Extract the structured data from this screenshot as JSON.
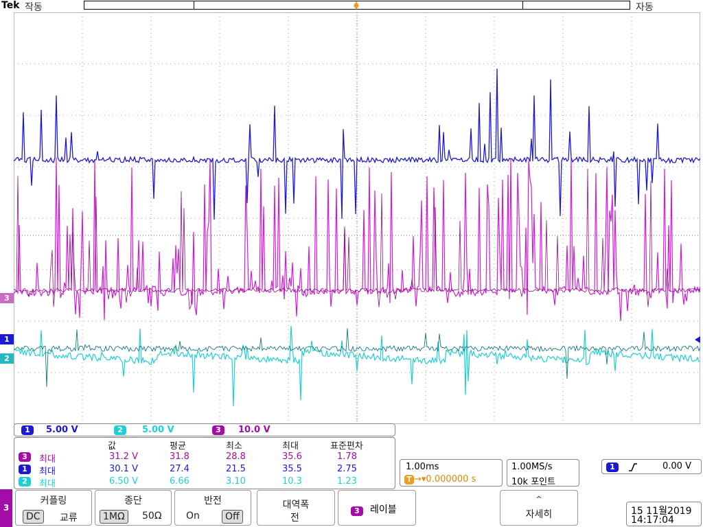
{
  "header": {
    "brand": "Tek",
    "acquisition_state": "작동",
    "trigger_mode": "자동",
    "trigger_icon": "T"
  },
  "channels": {
    "ch1": {
      "id": "1",
      "scale": "5.00 V",
      "color": "#1b18d6"
    },
    "ch2": {
      "id": "2",
      "scale": "5.00 V",
      "color": "#1ecfd8"
    },
    "ch3": {
      "id": "3",
      "scale": "10.0 V",
      "color": "#a20ca8"
    }
  },
  "measurements": {
    "headers": [
      "값",
      "평균",
      "최소",
      "최대",
      "표준편차"
    ],
    "rows": [
      {
        "ch": "3",
        "label": "최대",
        "value": "31.2 V",
        "mean": "31.8",
        "min": "28.8",
        "max": "35.6",
        "std": "1.78"
      },
      {
        "ch": "1",
        "label": "최대",
        "value": "30.1 V",
        "mean": "27.4",
        "min": "21.5",
        "max": "35.5",
        "std": "2.75"
      },
      {
        "ch": "2",
        "label": "최대",
        "value": "6.50 V",
        "mean": "6.66",
        "min": "3.10",
        "max": "10.3",
        "std": "1.23"
      }
    ]
  },
  "timebase": {
    "horizontal_scale": "1.00ms",
    "trigger_position": "0.000000 s",
    "sample_rate": "1.00MS/s",
    "record_length": "10k 포인트"
  },
  "trigger": {
    "source": "1",
    "slope_icon": "rising-edge-icon",
    "level": "0.00 V"
  },
  "menu": {
    "channel_tab": "3",
    "coupling": {
      "label": "커플링",
      "options": [
        "DC",
        "교류"
      ],
      "selected": "DC"
    },
    "termination": {
      "label": "종단",
      "options": [
        "1MΩ",
        "50Ω"
      ],
      "selected": "1MΩ"
    },
    "invert": {
      "label": "반전",
      "options": [
        "On",
        "Off"
      ],
      "selected": "Off"
    },
    "bandwidth": {
      "label": "대역폭",
      "value": "전"
    },
    "label_button": {
      "badge": "3",
      "label": "레이블"
    },
    "more": {
      "arrow": "^",
      "label": "자세히"
    }
  },
  "datetime": {
    "date": "15 11월2019",
    "time": "14:17:04"
  }
}
